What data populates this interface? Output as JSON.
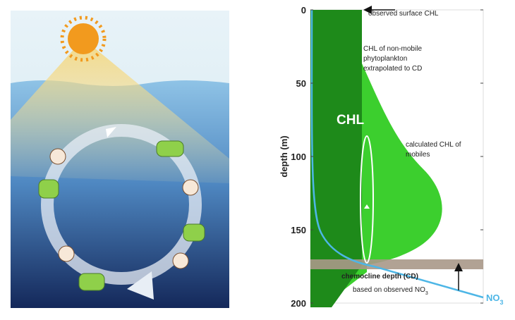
{
  "axis": {
    "label": "depth (m)",
    "ylim": [
      0,
      200
    ],
    "yticks": [
      0,
      50,
      100,
      150,
      200
    ]
  },
  "annotations": {
    "surface": "observed surface CHL",
    "nonmobile": [
      "CHL of non-mobile",
      "phytoplankton",
      "extrapolated to CD"
    ],
    "chl": "CHL",
    "mobiles": [
      "calculated CHL of",
      "mobiles"
    ],
    "cd": "chemocline depth (CD)",
    "based": "based on observed NO",
    "based_sub": "3",
    "no3": "NO",
    "no3_sub": "3"
  }
}
